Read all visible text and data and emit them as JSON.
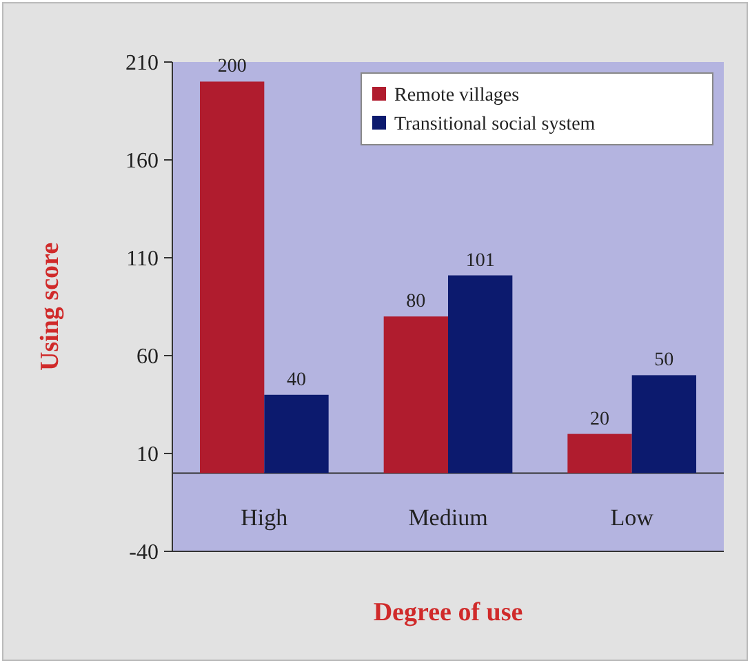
{
  "chart_data": {
    "type": "bar",
    "xlabel": "Degree of use",
    "ylabel": "Using score",
    "categories": [
      "High",
      "Medium",
      "Low"
    ],
    "series": [
      {
        "name": "Remote villages",
        "color": "#b01c2e",
        "values": [
          200,
          80,
          20
        ]
      },
      {
        "name": "Transitional social system",
        "color": "#0c1a6e",
        "values": [
          40,
          101,
          50
        ]
      }
    ],
    "ylim": [
      -40,
      210
    ],
    "yticks": [
      -40,
      10,
      60,
      110,
      160,
      210
    ],
    "data_labels": true,
    "legend": "top right",
    "grid": false
  }
}
